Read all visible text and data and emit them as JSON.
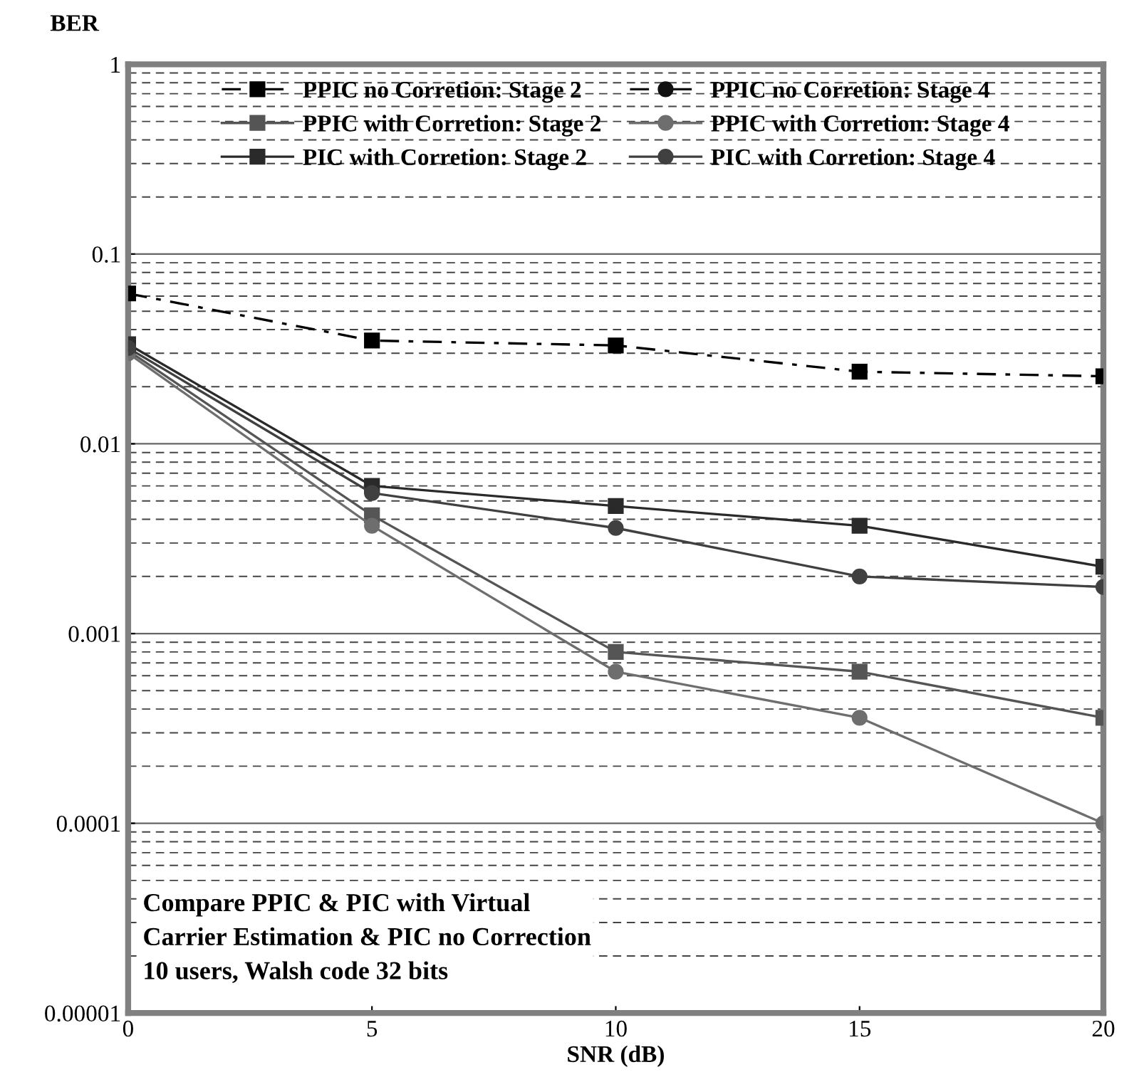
{
  "chart_data": {
    "type": "line",
    "xlabel": "SNR (dB)",
    "ylabel": "BER",
    "x": [
      0,
      5,
      10,
      15,
      20
    ],
    "series": [
      {
        "name": "PPIC no Corretion: Stage 2",
        "color": "#000000",
        "marker": "square",
        "line_style": "dashdot",
        "values": [
          0.062,
          0.035,
          0.033,
          0.024,
          0.0227
        ]
      },
      {
        "name": "PPIC no Corretion: Stage 4",
        "color": "#111111",
        "marker": "circle",
        "line_style": "dashdot",
        "values": [
          null,
          null,
          null,
          null,
          null
        ]
      },
      {
        "name": "PPIC with Corretion: Stage 2",
        "color": "#555555",
        "marker": "square",
        "line_style": "solid",
        "values": [
          0.031,
          0.0042,
          0.0008,
          0.00063,
          0.00036
        ]
      },
      {
        "name": "PPIC with Corretion: Stage 4",
        "color": "#6e6e6e",
        "marker": "circle",
        "line_style": "solid",
        "values": [
          0.03,
          0.0037,
          0.00063,
          0.00036,
          0.0001
        ]
      },
      {
        "name": "PIC with Corretion: Stage 2",
        "color": "#2a2a2a",
        "marker": "square",
        "line_style": "solid",
        "values": [
          0.0335,
          0.006,
          0.0047,
          0.0037,
          0.00225
        ]
      },
      {
        "name": "PIC with Corretion: Stage 4",
        "color": "#404040",
        "marker": "circle",
        "line_style": "solid",
        "values": [
          0.032,
          0.0055,
          0.0036,
          0.002,
          0.00176
        ]
      }
    ],
    "log": "y",
    "xlim": [
      0,
      20
    ],
    "xticks": [
      0,
      5,
      10,
      15,
      20
    ],
    "ylim": [
      1e-05,
      1
    ],
    "yticks": [
      {
        "value": 1e-05,
        "label": "0.00001"
      },
      {
        "value": 0.0001,
        "label": "0.0001"
      },
      {
        "value": 0.001,
        "label": "0.001"
      },
      {
        "value": 0.01,
        "label": "0.01"
      },
      {
        "value": 0.1,
        "label": "0.1"
      },
      {
        "value": 1,
        "label": "1"
      }
    ],
    "grid": "y",
    "legend": "top",
    "annotations": [
      "Compare PPIC & PIC with Virtual\nCarrier Estimation & PIC no Correction\n10 users, Walsh code 32 bits"
    ]
  }
}
